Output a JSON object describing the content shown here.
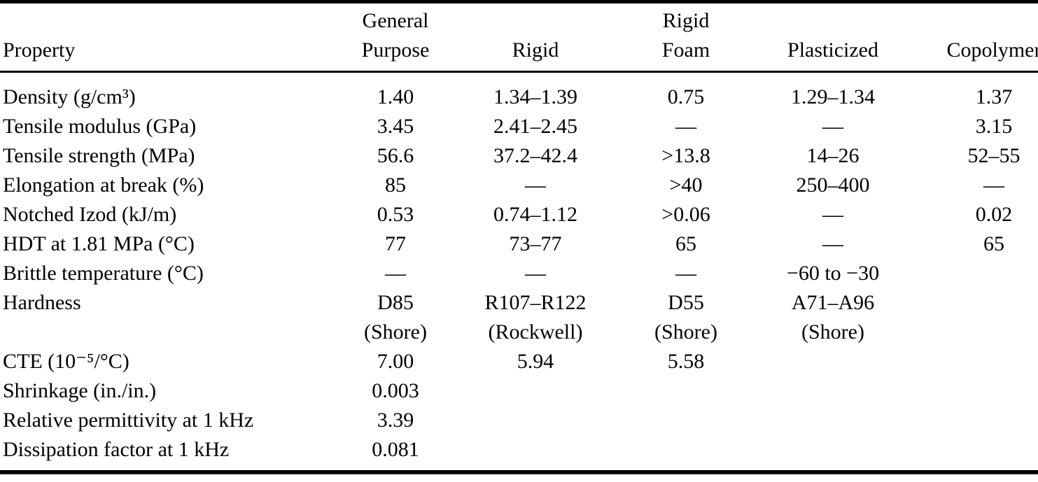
{
  "table": {
    "columns": [
      "Property",
      "General\nPurpose",
      "Rigid",
      "Rigid\nFoam",
      "Plasticized",
      "Copolymer"
    ],
    "rows": [
      {
        "property": "Density (g/cm³)",
        "values": [
          "1.40",
          "1.34–1.39",
          "0.75",
          "1.29–1.34",
          "1.37"
        ]
      },
      {
        "property": "Tensile modulus (GPa)",
        "values": [
          "3.45",
          "2.41–2.45",
          "—",
          "—",
          "3.15"
        ]
      },
      {
        "property": "Tensile strength (MPa)",
        "values": [
          "56.6",
          "37.2–42.4",
          ">13.8",
          "14–26",
          "52–55"
        ]
      },
      {
        "property": "Elongation at break (%)",
        "values": [
          "85",
          "—",
          ">40",
          "250–400",
          "—"
        ]
      },
      {
        "property": "Notched Izod (kJ/m)",
        "values": [
          "0.53",
          "0.74–1.12",
          ">0.06",
          "—",
          "0.02"
        ]
      },
      {
        "property": "HDT at 1.81 MPa (°C)",
        "values": [
          "77",
          "73–77",
          "65",
          "—",
          "65"
        ]
      },
      {
        "property": "Brittle temperature (°C)",
        "values": [
          "—",
          "—",
          "—",
          "−60 to −30",
          ""
        ]
      },
      {
        "property": "Hardness",
        "values": [
          "D85\n(Shore)",
          "R107–R122\n(Rockwell)",
          "D55\n(Shore)",
          "A71–A96\n(Shore)",
          ""
        ]
      },
      {
        "property": "CTE (10⁻⁵/°C)",
        "values": [
          "7.00",
          "5.94",
          "5.58",
          "",
          ""
        ]
      },
      {
        "property": "Shrinkage (in./in.)",
        "values": [
          "0.003",
          "",
          "",
          "",
          ""
        ]
      },
      {
        "property": "Relative permittivity at 1 kHz",
        "values": [
          "3.39",
          "",
          "",
          "",
          ""
        ]
      },
      {
        "property": "Dissipation factor at 1 kHz",
        "values": [
          "0.081",
          "",
          "",
          "",
          ""
        ]
      }
    ]
  },
  "colors": {
    "text": "#000000",
    "background": "#ffffff",
    "rule": "#000000"
  }
}
